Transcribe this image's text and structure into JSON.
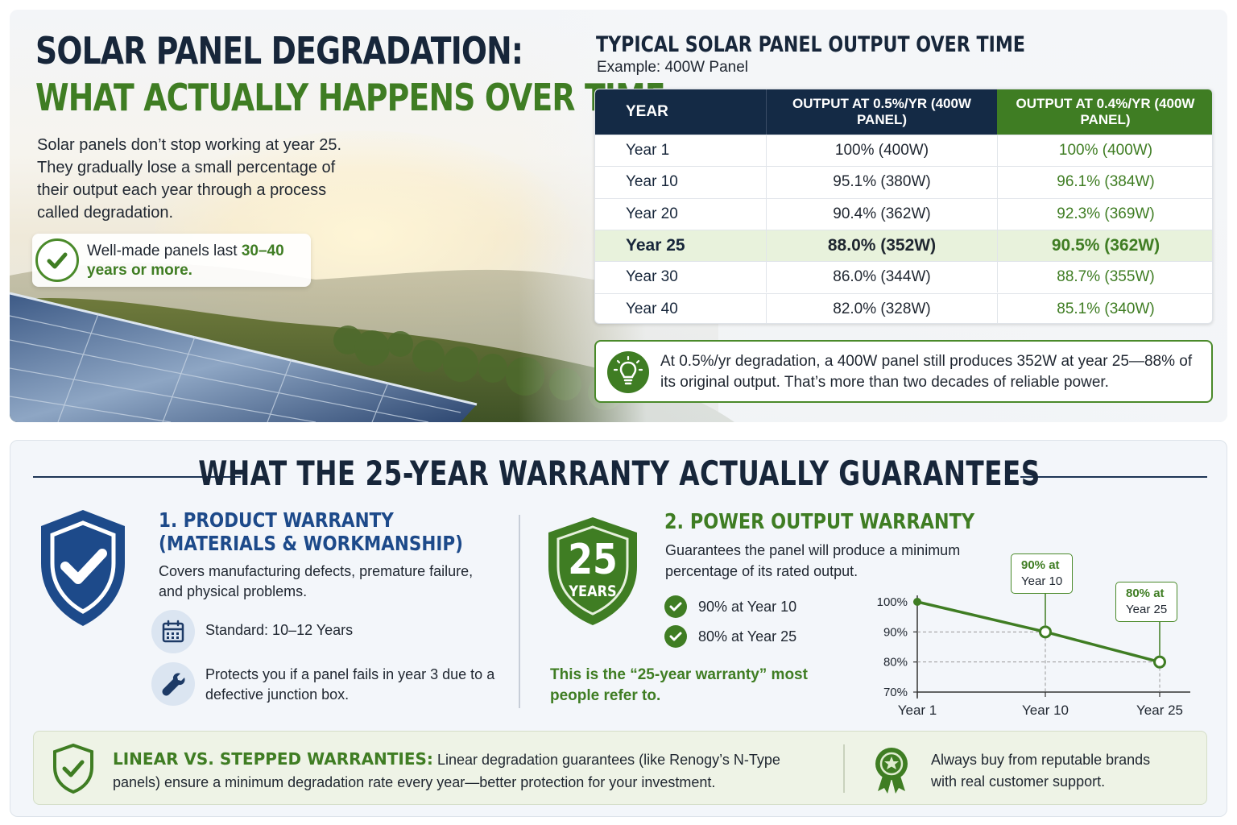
{
  "header": {
    "title_line1": "SOLAR PANEL DEGRADATION:",
    "title_line2": "WHAT ACTUALLY HAPPENS OVER TIME",
    "intro": "Solar panels don’t stop working at year 25. They gradually lose a small percentage of their output each year through a process called degradation.",
    "check_note_prefix": "Well-made panels last ",
    "check_note_highlight": "30–40 years or more."
  },
  "output_table": {
    "title": "TYPICAL SOLAR PANEL OUTPUT OVER TIME",
    "subtitle": "Example: 400W Panel",
    "columns": [
      "YEAR",
      "OUTPUT AT 0.5%/YR (400W PANEL)",
      "OUTPUT AT 0.4%/YR (400W PANEL)"
    ],
    "rows": [
      {
        "year": "Year 1",
        "a": "100% (400W)",
        "b": "100% (400W)"
      },
      {
        "year": "Year 10",
        "a": "95.1% (380W)",
        "b": "96.1% (384W)"
      },
      {
        "year": "Year 20",
        "a": "90.4% (362W)",
        "b": "92.3% (369W)"
      },
      {
        "year": "Year 25",
        "a": "88.0% (352W)",
        "b": "90.5% (362W)"
      },
      {
        "year": "Year 30",
        "a": "86.0% (344W)",
        "b": "88.7% (355W)"
      },
      {
        "year": "Year 40",
        "a": "82.0% (328W)",
        "b": "85.1% (340W)"
      }
    ],
    "highlight_row": "Year 25",
    "tip": "At 0.5%/yr degradation, a 400W panel still produces 352W at year 25—88% of its original output. That’s more than two decades of reliable power."
  },
  "warranty": {
    "section_title": "WHAT THE 25-YEAR WARRANTY ACTUALLY GUARANTEES",
    "product": {
      "title_line1": "1. PRODUCT WARRANTY",
      "title_line2": "(MATERIALS & WORKMANSHIP)",
      "description": "Covers manufacturing defects, premature failure, and physical problems.",
      "standard": "Standard: 10–12 Years",
      "protects": "Protects you if a panel fails in year 3 due to a defective junction box.",
      "icons": [
        "shield-check-icon",
        "calendar-icon",
        "wrench-icon"
      ]
    },
    "power": {
      "badge_number": "25",
      "badge_label": "YEARS",
      "title": "2. POWER OUTPUT WARRANTY",
      "description": "Guarantees the panel will produce a minimum percentage of its rated output.",
      "items": [
        "90% at Year 10",
        "80% at Year 25"
      ],
      "quote": "This is the “25-year warranty” most people refer to.",
      "callout1_value": "90% at",
      "callout1_label": "Year 10",
      "callout2_value": "80% at",
      "callout2_label": "Year 25"
    },
    "note": {
      "heading": "LINEAR VS. STEPPED WARRANTIES:",
      "text": " Linear degradation guarantees (like Renogy’s N-Type panels) ensure a minimum degradation rate every year—better protection for your investment.",
      "right_text": "Always buy from reputable brands with real customer support."
    }
  },
  "colors": {
    "navy": "#142a45",
    "green": "#3f7d23",
    "blue": "#1d4a8a",
    "highlight": "#e8f2dc"
  },
  "chart_data": {
    "type": "line",
    "categories": [
      "Year 1",
      "Year 10",
      "Year 25"
    ],
    "y_ticks": [
      "100%",
      "90%",
      "80%",
      "70%"
    ],
    "values": [
      100,
      90,
      80
    ],
    "ylim": [
      70,
      100
    ],
    "grid": "dashed guides at data points"
  }
}
